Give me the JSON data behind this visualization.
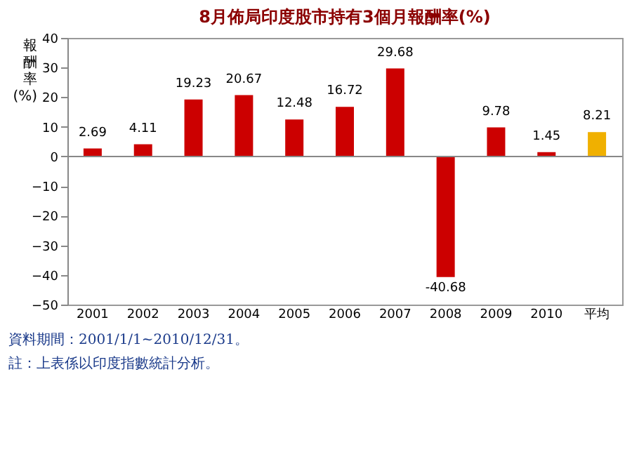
{
  "chart_data": {
    "type": "bar",
    "title": "8月佈局印度股市持有3個月報酬率(%)",
    "ylabel": "報酬率(%)",
    "categories": [
      "2001",
      "2002",
      "2003",
      "2004",
      "2005",
      "2006",
      "2007",
      "2008",
      "2009",
      "2010",
      "平均"
    ],
    "values": [
      2.69,
      4.11,
      19.23,
      20.67,
      12.48,
      16.72,
      29.68,
      -40.68,
      9.78,
      1.45,
      8.21
    ],
    "colors": [
      "#cc0000",
      "#cc0000",
      "#cc0000",
      "#cc0000",
      "#cc0000",
      "#cc0000",
      "#cc0000",
      "#cc0000",
      "#cc0000",
      "#cc0000",
      "#f0b000"
    ],
    "ylim": [
      -50,
      40
    ],
    "yticks": [
      -50,
      -40,
      -30,
      -20,
      -10,
      0,
      10,
      20,
      30,
      40
    ],
    "data_labels": true,
    "annotations": [
      "資料期間：2001/1/1~2010/12/31。",
      "註：上表係以印度指數統計分析。"
    ]
  }
}
